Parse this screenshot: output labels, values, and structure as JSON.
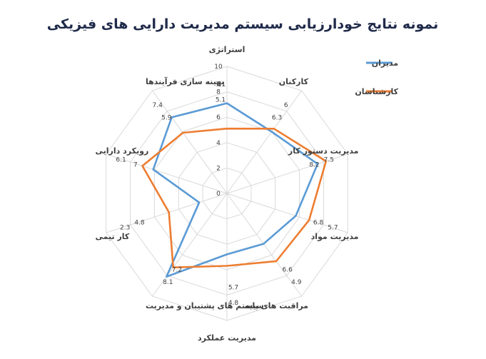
{
  "chart_data": {
    "type": "radar",
    "title": "نمونه نتایج خودارزیابی سیستم مدیریت دارایی های فیزیکی",
    "categories": [
      "استراتژی",
      "کارکنان",
      "مدیریت دستور کار",
      "مدیریت مواد",
      "مراقبت های پایه",
      "مدیریت عملکرد",
      "سیستم های پشتیبان و مدیریت",
      "کار تیمی",
      "رویکرد دارایی",
      "بهینه سازی فرآیندها"
    ],
    "r_ticks": [
      "0",
      "2",
      "4",
      "6",
      "8",
      "10"
    ],
    "rlim": [
      0,
      10
    ],
    "grid": true,
    "legend_position": "top-right",
    "series": [
      {
        "name": "مدیران",
        "color": "#5b9bd5",
        "values": [
          7.1,
          6,
          7.5,
          5.7,
          4.9,
          4.8,
          8.1,
          2.3,
          6.1,
          7.4
        ],
        "labels": [
          "7.1",
          "6",
          "7.5",
          "5.7",
          "4.9",
          "4.8",
          "8.1",
          "2.3",
          "6.1",
          "7.4"
        ]
      },
      {
        "name": "کارشناسان",
        "color": "#ed7d31",
        "values": [
          5.1,
          6.3,
          8.2,
          6.8,
          6.6,
          5.7,
          7.2,
          4.8,
          7,
          5.9
        ],
        "labels": [
          "5.1",
          "6.3",
          "8.2",
          "6.8",
          "6.6",
          "5.7",
          "7.2",
          "4.8",
          "7",
          "5.9"
        ]
      }
    ]
  }
}
